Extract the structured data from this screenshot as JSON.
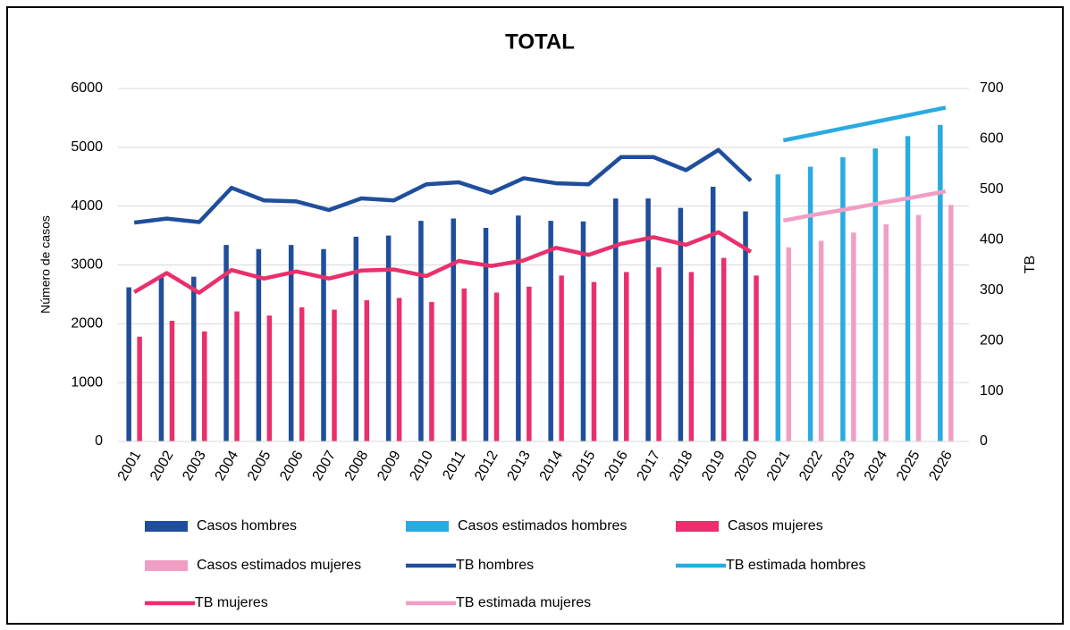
{
  "chart_data": {
    "type": "bar_line",
    "title": "TOTAL",
    "ylabel": "Número de casos",
    "y2label": "TB",
    "categories": [
      "2001",
      "2002",
      "2003",
      "2004",
      "2005",
      "2006",
      "2007",
      "2008",
      "2009",
      "2010",
      "2011",
      "2012",
      "2013",
      "2014",
      "2015",
      "2016",
      "2017",
      "2018",
      "2019",
      "2020",
      "2021",
      "2022",
      "2023",
      "2024",
      "2025",
      "2026"
    ],
    "ylim": [
      0,
      6000
    ],
    "yticks": [
      0,
      1000,
      2000,
      3000,
      4000,
      5000,
      6000
    ],
    "y2lim": [
      0,
      700
    ],
    "y2ticks": [
      0,
      100,
      200,
      300,
      400,
      500,
      600,
      700
    ],
    "grid": true,
    "legend": "bottom",
    "series": [
      {
        "name": "Casos hombres",
        "kind": "bar",
        "color": "#1f4e9c",
        "values": [
          2620,
          2790,
          2800,
          3340,
          3270,
          3340,
          3270,
          3480,
          3500,
          3750,
          3790,
          3630,
          3840,
          3750,
          3740,
          4130,
          4130,
          3970,
          4330,
          3910,
          null,
          null,
          null,
          null,
          null,
          null
        ]
      },
      {
        "name": "Casos estimados hombres",
        "kind": "bar",
        "color": "#29abe2",
        "values": [
          null,
          null,
          null,
          null,
          null,
          null,
          null,
          null,
          null,
          null,
          null,
          null,
          null,
          null,
          null,
          null,
          null,
          null,
          null,
          null,
          4540,
          4670,
          4830,
          4980,
          5190,
          5380
        ]
      },
      {
        "name": "Casos mujeres",
        "kind": "bar",
        "color": "#e9306c",
        "values": [
          1780,
          2050,
          1870,
          2210,
          2140,
          2280,
          2240,
          2400,
          2440,
          2370,
          2600,
          2530,
          2630,
          2820,
          2710,
          2880,
          2960,
          2880,
          3120,
          2820,
          null,
          null,
          null,
          null,
          null,
          null
        ]
      },
      {
        "name": "Casos estimados mujeres",
        "kind": "bar",
        "color": "#f19ec4",
        "values": [
          null,
          null,
          null,
          null,
          null,
          null,
          null,
          null,
          null,
          null,
          null,
          null,
          null,
          null,
          null,
          null,
          null,
          null,
          null,
          null,
          3300,
          3410,
          3550,
          3690,
          3850,
          4020
        ]
      },
      {
        "name": "TB hombres",
        "kind": "line",
        "axis": "y2",
        "color": "#1f4e9c",
        "values": [
          434,
          442,
          435,
          503,
          478,
          476,
          459,
          482,
          478,
          510,
          514,
          493,
          522,
          512,
          510,
          564,
          564,
          538,
          578,
          517,
          null,
          null,
          null,
          null,
          null,
          null
        ]
      },
      {
        "name": "TB estimada hombres",
        "kind": "line",
        "axis": "y2",
        "color": "#29abe2",
        "values": [
          null,
          null,
          null,
          null,
          null,
          null,
          null,
          null,
          null,
          null,
          null,
          null,
          null,
          null,
          null,
          null,
          null,
          null,
          null,
          null,
          597,
          610,
          623,
          636,
          649,
          662
        ]
      },
      {
        "name": "TB mujeres",
        "kind": "line",
        "axis": "y2",
        "color": "#e9306c",
        "values": [
          296,
          334,
          295,
          340,
          323,
          337,
          323,
          339,
          341,
          328,
          358,
          348,
          359,
          384,
          370,
          392,
          405,
          390,
          415,
          376,
          null,
          null,
          null,
          null,
          null,
          null
        ]
      },
      {
        "name": "TB estimada mujeres",
        "kind": "line",
        "axis": "y2",
        "color": "#f19ec4",
        "values": [
          null,
          null,
          null,
          null,
          null,
          null,
          null,
          null,
          null,
          null,
          null,
          null,
          null,
          null,
          null,
          null,
          null,
          null,
          null,
          null,
          438,
          450,
          461,
          473,
          484,
          496
        ]
      }
    ]
  }
}
